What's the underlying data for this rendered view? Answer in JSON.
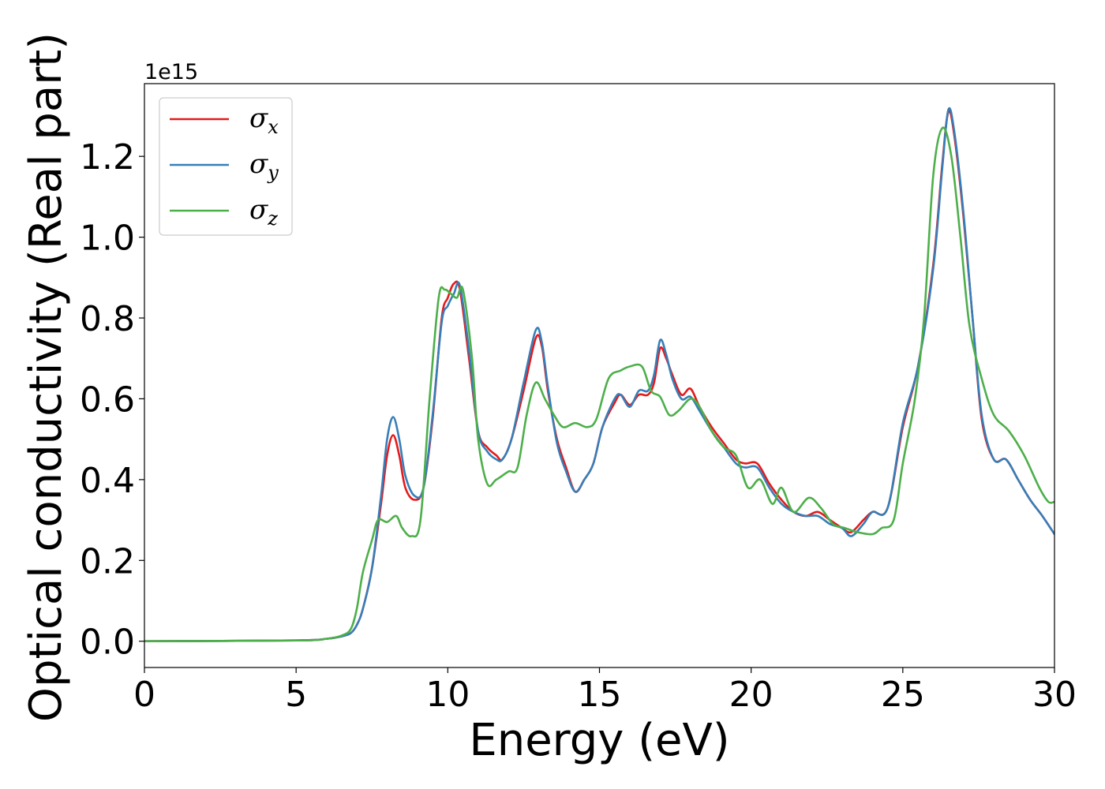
{
  "chart_data": {
    "type": "line",
    "xlabel": "Energy (eV)",
    "ylabel": "Optical conductivity (Real part)",
    "y_offset_label": "1e15",
    "y_scale": 1000000000000000.0,
    "xlim": [
      0,
      30
    ],
    "ylim": [
      -0.065,
      1.38
    ],
    "x_ticks": [
      0,
      5,
      10,
      15,
      20,
      25,
      30
    ],
    "y_ticks": [
      0.0,
      0.2,
      0.4,
      0.6,
      0.8,
      1.0,
      1.2
    ],
    "x_tick_labels": [
      "0",
      "5",
      "10",
      "15",
      "20",
      "25",
      "30"
    ],
    "y_tick_labels": [
      "0.0",
      "0.2",
      "0.4",
      "0.6",
      "0.8",
      "1.0",
      "1.2"
    ],
    "grid": false,
    "legend_position": "top-left",
    "series": [
      {
        "name": "σx",
        "name_base": "σ",
        "name_sub": "x",
        "color": "#e41a1c",
        "points": [
          [
            0,
            0
          ],
          [
            5,
            0.002
          ],
          [
            6,
            0.006
          ],
          [
            6.5,
            0.012
          ],
          [
            6.8,
            0.02
          ],
          [
            7.0,
            0.04
          ],
          [
            7.2,
            0.08
          ],
          [
            7.5,
            0.18
          ],
          [
            7.8,
            0.34
          ],
          [
            8.0,
            0.46
          ],
          [
            8.2,
            0.51
          ],
          [
            8.4,
            0.46
          ],
          [
            8.6,
            0.38
          ],
          [
            8.9,
            0.35
          ],
          [
            9.2,
            0.38
          ],
          [
            9.5,
            0.55
          ],
          [
            9.8,
            0.8
          ],
          [
            10.0,
            0.85
          ],
          [
            10.2,
            0.885
          ],
          [
            10.4,
            0.87
          ],
          [
            10.7,
            0.7
          ],
          [
            11.0,
            0.52
          ],
          [
            11.3,
            0.48
          ],
          [
            11.6,
            0.46
          ],
          [
            11.8,
            0.45
          ],
          [
            12.1,
            0.5
          ],
          [
            12.5,
            0.62
          ],
          [
            12.9,
            0.75
          ],
          [
            13.1,
            0.73
          ],
          [
            13.3,
            0.62
          ],
          [
            13.6,
            0.5
          ],
          [
            13.9,
            0.43
          ],
          [
            14.2,
            0.37
          ],
          [
            14.5,
            0.4
          ],
          [
            14.8,
            0.44
          ],
          [
            15.1,
            0.53
          ],
          [
            15.5,
            0.59
          ],
          [
            15.7,
            0.61
          ],
          [
            16.0,
            0.585
          ],
          [
            16.3,
            0.61
          ],
          [
            16.6,
            0.61
          ],
          [
            16.8,
            0.64
          ],
          [
            17.0,
            0.725
          ],
          [
            17.2,
            0.7
          ],
          [
            17.4,
            0.66
          ],
          [
            17.7,
            0.61
          ],
          [
            18.0,
            0.625
          ],
          [
            18.3,
            0.58
          ],
          [
            18.7,
            0.53
          ],
          [
            19.1,
            0.49
          ],
          [
            19.5,
            0.45
          ],
          [
            19.8,
            0.44
          ],
          [
            20.2,
            0.44
          ],
          [
            20.6,
            0.39
          ],
          [
            21.0,
            0.35
          ],
          [
            21.4,
            0.32
          ],
          [
            21.8,
            0.31
          ],
          [
            22.2,
            0.32
          ],
          [
            22.6,
            0.3
          ],
          [
            23.0,
            0.28
          ],
          [
            23.3,
            0.27
          ],
          [
            23.7,
            0.3
          ],
          [
            24.0,
            0.32
          ],
          [
            24.5,
            0.33
          ],
          [
            25.0,
            0.53
          ],
          [
            25.5,
            0.68
          ],
          [
            26.0,
            0.93
          ],
          [
            26.3,
            1.18
          ],
          [
            26.5,
            1.31
          ],
          [
            26.7,
            1.25
          ],
          [
            27.0,
            1.05
          ],
          [
            27.3,
            0.8
          ],
          [
            27.6,
            0.55
          ],
          [
            28.0,
            0.45
          ],
          [
            28.4,
            0.45
          ],
          [
            28.8,
            0.4
          ],
          [
            29.2,
            0.35
          ],
          [
            29.6,
            0.31
          ],
          [
            30,
            0.265
          ]
        ]
      },
      {
        "name": "σy",
        "name_base": "σ",
        "name_sub": "y",
        "color": "#377eb8",
        "points": [
          [
            0,
            0
          ],
          [
            5,
            0.002
          ],
          [
            6,
            0.006
          ],
          [
            6.5,
            0.012
          ],
          [
            6.8,
            0.02
          ],
          [
            7.0,
            0.04
          ],
          [
            7.2,
            0.08
          ],
          [
            7.5,
            0.18
          ],
          [
            7.8,
            0.36
          ],
          [
            8.0,
            0.5
          ],
          [
            8.2,
            0.555
          ],
          [
            8.4,
            0.5
          ],
          [
            8.6,
            0.41
          ],
          [
            8.9,
            0.36
          ],
          [
            9.2,
            0.38
          ],
          [
            9.5,
            0.56
          ],
          [
            9.8,
            0.79
          ],
          [
            10.0,
            0.83
          ],
          [
            10.2,
            0.86
          ],
          [
            10.4,
            0.88
          ],
          [
            10.7,
            0.72
          ],
          [
            11.0,
            0.52
          ],
          [
            11.3,
            0.47
          ],
          [
            11.6,
            0.45
          ],
          [
            11.8,
            0.45
          ],
          [
            12.1,
            0.5
          ],
          [
            12.5,
            0.64
          ],
          [
            12.9,
            0.77
          ],
          [
            13.1,
            0.74
          ],
          [
            13.3,
            0.63
          ],
          [
            13.6,
            0.49
          ],
          [
            13.9,
            0.42
          ],
          [
            14.2,
            0.37
          ],
          [
            14.5,
            0.4
          ],
          [
            14.8,
            0.44
          ],
          [
            15.1,
            0.53
          ],
          [
            15.5,
            0.6
          ],
          [
            15.7,
            0.61
          ],
          [
            16.0,
            0.58
          ],
          [
            16.3,
            0.62
          ],
          [
            16.6,
            0.62
          ],
          [
            16.8,
            0.66
          ],
          [
            17.0,
            0.745
          ],
          [
            17.2,
            0.71
          ],
          [
            17.4,
            0.65
          ],
          [
            17.7,
            0.6
          ],
          [
            18.0,
            0.605
          ],
          [
            18.3,
            0.57
          ],
          [
            18.7,
            0.52
          ],
          [
            19.1,
            0.48
          ],
          [
            19.5,
            0.44
          ],
          [
            19.8,
            0.43
          ],
          [
            20.2,
            0.43
          ],
          [
            20.6,
            0.38
          ],
          [
            21.0,
            0.34
          ],
          [
            21.4,
            0.32
          ],
          [
            21.8,
            0.31
          ],
          [
            22.2,
            0.31
          ],
          [
            22.6,
            0.29
          ],
          [
            23.0,
            0.28
          ],
          [
            23.3,
            0.26
          ],
          [
            23.7,
            0.29
          ],
          [
            24.0,
            0.32
          ],
          [
            24.5,
            0.33
          ],
          [
            25.0,
            0.54
          ],
          [
            25.5,
            0.68
          ],
          [
            26.0,
            0.92
          ],
          [
            26.3,
            1.17
          ],
          [
            26.5,
            1.315
          ],
          [
            26.7,
            1.26
          ],
          [
            27.0,
            1.06
          ],
          [
            27.3,
            0.8
          ],
          [
            27.6,
            0.56
          ],
          [
            28.0,
            0.45
          ],
          [
            28.4,
            0.45
          ],
          [
            28.8,
            0.4
          ],
          [
            29.2,
            0.35
          ],
          [
            29.6,
            0.31
          ],
          [
            30,
            0.265
          ]
        ]
      },
      {
        "name": "σz",
        "name_base": "σ",
        "name_sub": "z",
        "color": "#4daf4a",
        "points": [
          [
            0,
            0
          ],
          [
            5,
            0.002
          ],
          [
            6,
            0.006
          ],
          [
            6.5,
            0.014
          ],
          [
            6.8,
            0.03
          ],
          [
            7.0,
            0.08
          ],
          [
            7.2,
            0.17
          ],
          [
            7.5,
            0.25
          ],
          [
            7.7,
            0.3
          ],
          [
            8.0,
            0.295
          ],
          [
            8.3,
            0.31
          ],
          [
            8.5,
            0.28
          ],
          [
            8.8,
            0.26
          ],
          [
            9.1,
            0.3
          ],
          [
            9.4,
            0.6
          ],
          [
            9.7,
            0.85
          ],
          [
            9.9,
            0.87
          ],
          [
            10.1,
            0.86
          ],
          [
            10.3,
            0.85
          ],
          [
            10.5,
            0.87
          ],
          [
            10.8,
            0.7
          ],
          [
            11.0,
            0.5
          ],
          [
            11.3,
            0.39
          ],
          [
            11.6,
            0.4
          ],
          [
            12.0,
            0.42
          ],
          [
            12.3,
            0.43
          ],
          [
            12.6,
            0.56
          ],
          [
            12.9,
            0.64
          ],
          [
            13.2,
            0.6
          ],
          [
            13.5,
            0.56
          ],
          [
            13.8,
            0.53
          ],
          [
            14.2,
            0.54
          ],
          [
            14.6,
            0.53
          ],
          [
            14.9,
            0.55
          ],
          [
            15.3,
            0.65
          ],
          [
            15.7,
            0.67
          ],
          [
            16.0,
            0.68
          ],
          [
            16.4,
            0.68
          ],
          [
            16.7,
            0.62
          ],
          [
            17.0,
            0.605
          ],
          [
            17.3,
            0.56
          ],
          [
            17.6,
            0.57
          ],
          [
            18.0,
            0.6
          ],
          [
            18.3,
            0.58
          ],
          [
            18.7,
            0.52
          ],
          [
            19.1,
            0.48
          ],
          [
            19.5,
            0.46
          ],
          [
            19.9,
            0.38
          ],
          [
            20.3,
            0.4
          ],
          [
            20.7,
            0.34
          ],
          [
            21.0,
            0.38
          ],
          [
            21.4,
            0.32
          ],
          [
            21.9,
            0.355
          ],
          [
            22.3,
            0.33
          ],
          [
            22.7,
            0.29
          ],
          [
            23.1,
            0.28
          ],
          [
            23.5,
            0.27
          ],
          [
            24.0,
            0.265
          ],
          [
            24.3,
            0.28
          ],
          [
            24.7,
            0.3
          ],
          [
            25.0,
            0.44
          ],
          [
            25.4,
            0.6
          ],
          [
            25.7,
            0.8
          ],
          [
            26.0,
            1.15
          ],
          [
            26.3,
            1.27
          ],
          [
            26.6,
            1.2
          ],
          [
            26.9,
            1.0
          ],
          [
            27.2,
            0.78
          ],
          [
            27.6,
            0.65
          ],
          [
            28.0,
            0.56
          ],
          [
            28.5,
            0.52
          ],
          [
            29.0,
            0.46
          ],
          [
            29.5,
            0.38
          ],
          [
            29.8,
            0.345
          ],
          [
            30,
            0.345
          ]
        ]
      }
    ]
  }
}
